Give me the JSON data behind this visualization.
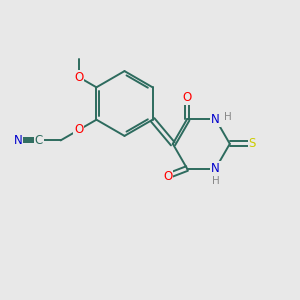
{
  "bg_color": "#e8e8e8",
  "bond_color": "#2d6b5e",
  "atom_colors": {
    "O": "#ff0000",
    "N": "#0000cc",
    "S": "#cccc00",
    "H": "#888888"
  },
  "font_size": 8.5,
  "lw": 1.4
}
